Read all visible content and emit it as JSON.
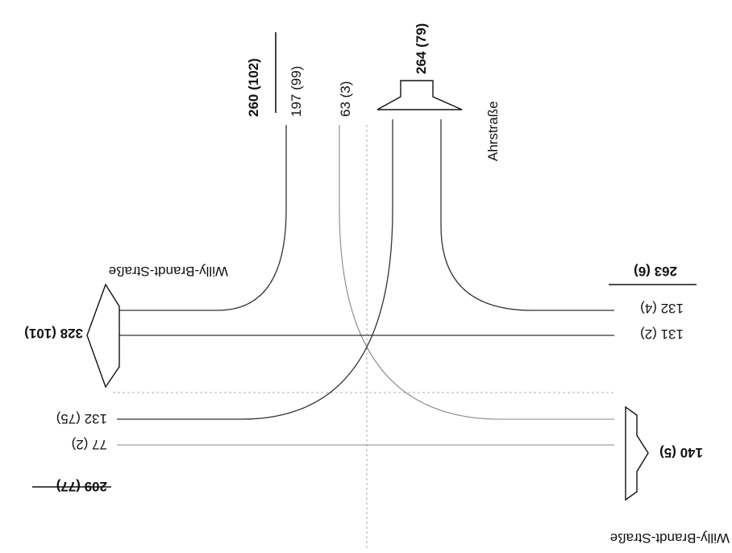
{
  "streets": {
    "willy_top": "Willy-Brandt-Straße",
    "willy_bottom": "Willy-Brandt-Straße",
    "ahr": "Ahrstraße"
  },
  "north": {
    "inflow_total": "260 (102)",
    "left_turn": "197 (99)",
    "through": "63 (3)",
    "outflow_total": "264 (79)"
  },
  "east": {
    "inflow_total": "263 (6)",
    "right_turn": "132 (4)",
    "through": "131 (2)"
  },
  "west": {
    "outflow_total": "328 (101)",
    "right_turn": "132 (75)",
    "through": "77 (2)",
    "inflow_total": "209 (77)"
  },
  "south": {
    "outflow_total": "140 (5)"
  }
}
